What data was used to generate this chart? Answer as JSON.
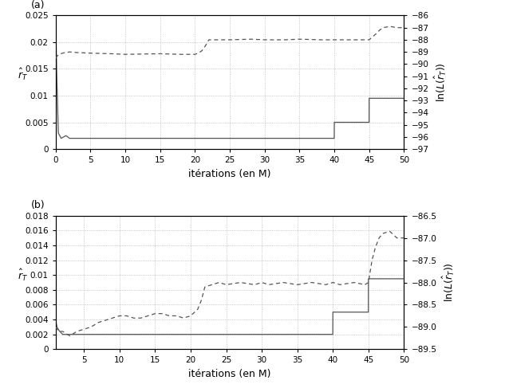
{
  "fig_width": 6.33,
  "fig_height": 4.87,
  "panel_a": {
    "label": "(a)",
    "xlabel": "itérations (en M)",
    "ylabel_left": "$\\hat{r}_T$",
    "ylabel_right": "$\\ln(L(\\hat{r}_T))$",
    "xlim": [
      0,
      50
    ],
    "ylim_left": [
      0,
      0.025
    ],
    "ylim_right": [
      -97,
      -86
    ],
    "yticks_left": [
      0,
      0.005,
      0.01,
      0.015,
      0.02,
      0.025
    ],
    "yticks_right": [
      -97,
      -96,
      -95,
      -94,
      -93,
      -92,
      -91,
      -90,
      -89,
      -88,
      -87,
      -86
    ],
    "xticks": [
      0,
      5,
      10,
      15,
      20,
      25,
      30,
      35,
      40,
      45,
      50
    ]
  },
  "panel_b": {
    "label": "(b)",
    "xlabel": "itérations (en M)",
    "ylabel_left": "$\\hat{r}_T$",
    "ylabel_right": "$\\ln(L(\\hat{r}_T))$",
    "xlim": [
      1,
      50
    ],
    "ylim_left": [
      0,
      0.018
    ],
    "ylim_right": [
      -89.5,
      -86.5
    ],
    "yticks_left": [
      0,
      0.002,
      0.004,
      0.006,
      0.008,
      0.01,
      0.012,
      0.014,
      0.016,
      0.018
    ],
    "yticks_right": [
      -89.5,
      -89.0,
      -88.5,
      -88.0,
      -87.5,
      -87.0,
      -86.5
    ],
    "xticks": [
      5,
      10,
      15,
      20,
      25,
      30,
      35,
      40,
      45,
      50
    ]
  }
}
